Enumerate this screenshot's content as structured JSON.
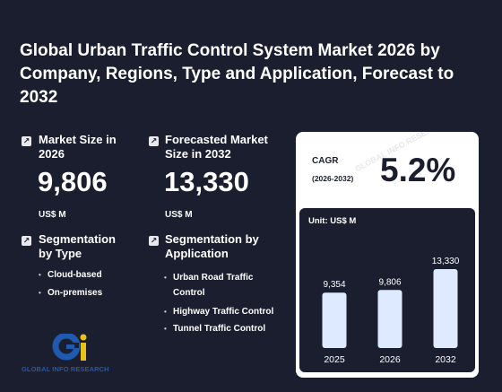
{
  "title": "Global Urban Traffic Control System Market 2026 by Company, Regions, Type and Application, Forecast to 2032",
  "market_size": {
    "label": "Market Size in 2026",
    "value": "9,806",
    "unit": "US$ M"
  },
  "forecast": {
    "label": "Forecasted Market Size in 2032",
    "value": "13,330",
    "unit": "US$ M"
  },
  "segmentation_type": {
    "label": "Segmentation by Type",
    "items": [
      "Cloud-based",
      "On-premises"
    ]
  },
  "segmentation_application": {
    "label": "Segmentation by Application",
    "items": [
      "Urban Road Traffic Control",
      "Highway Traffic Control",
      "Tunnel Traffic Control"
    ]
  },
  "cagr": {
    "label": "CAGR",
    "period": "(2026-2032)",
    "value": "5.2%"
  },
  "logo_text": "GLOBAL INFO RESEARCH",
  "watermark": "GLOBAL INFO RESEARCH",
  "colors": {
    "background": "#1b1e2e",
    "bar": "#ddeaff",
    "logo_blue": "#1f59b0",
    "logo_yellow": "#e8c21a"
  },
  "chart_data": {
    "type": "bar",
    "unit_label": "Unit: US$ M",
    "categories": [
      "2025",
      "2026",
      "2032"
    ],
    "values": [
      9354,
      9806,
      13330
    ],
    "value_labels": [
      "9,354",
      "9,806",
      "13,330"
    ],
    "ylim": [
      0,
      13330
    ],
    "grid": false
  }
}
